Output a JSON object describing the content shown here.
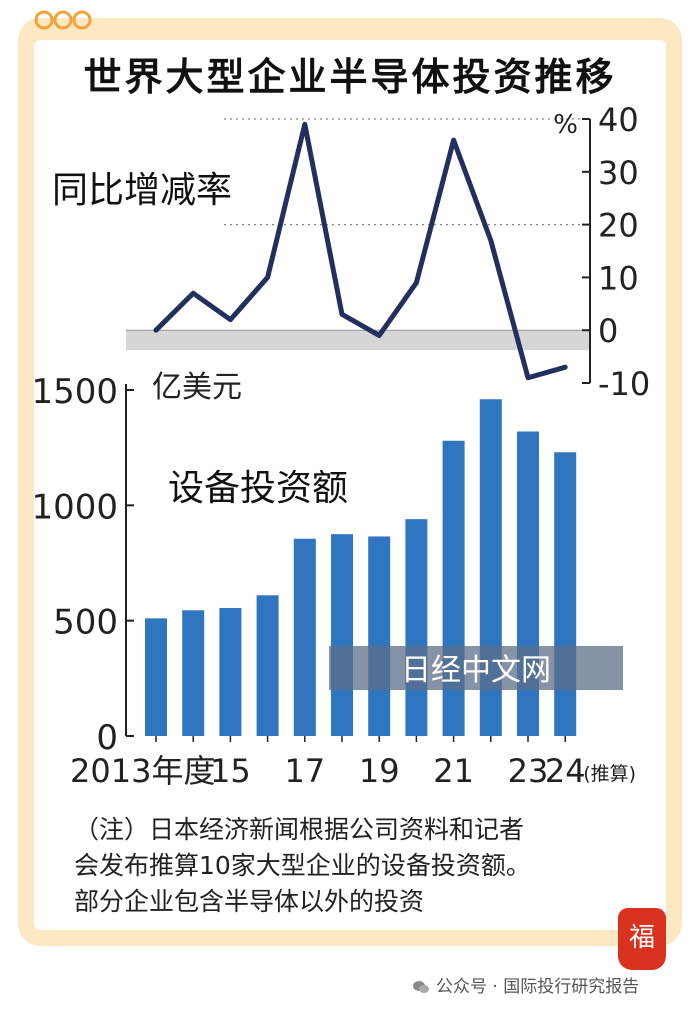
{
  "title": "世界大型企业半导体投资推移",
  "chart_data": {
    "type": "bar",
    "top_panel": {
      "type": "line",
      "label": "同比增减率",
      "unit": "%",
      "y_ticks": [
        40,
        30,
        20,
        10,
        0,
        -10
      ],
      "ylim": [
        -10,
        40
      ],
      "x": [
        2013,
        2014,
        2015,
        2016,
        2017,
        2018,
        2019,
        2020,
        2021,
        2022,
        2023,
        2024
      ],
      "values": [
        0,
        7,
        2,
        10,
        39,
        3,
        -1,
        9,
        36,
        17,
        -9,
        -7
      ]
    },
    "bottom_panel": {
      "type": "bar",
      "label": "设备投资额",
      "unit": "亿美元",
      "y_ticks": [
        1500,
        1000,
        500,
        0
      ],
      "ylim": [
        0,
        1500
      ],
      "x": [
        2013,
        2014,
        2015,
        2016,
        2017,
        2018,
        2019,
        2020,
        2021,
        2022,
        2023,
        2024
      ],
      "values": [
        510,
        545,
        555,
        610,
        855,
        875,
        865,
        940,
        1280,
        1460,
        1320,
        1230
      ]
    },
    "x_tick_labels": [
      "2013年度",
      "15",
      "17",
      "19",
      "21",
      "23",
      "24"
    ],
    "x_tick_suffix": "(推算)",
    "colors": {
      "bar": "#2f75c0",
      "line": "#23305f"
    }
  },
  "logo_text": "日经中文网",
  "note_lines": [
    "（注）日本经济新闻根据公司资料和记者",
    "会发布推算10家大型企业的设备投资额。",
    "部分企业包含半导体以外的投资"
  ],
  "watermark": "公众号 · 国际投行研究报告"
}
